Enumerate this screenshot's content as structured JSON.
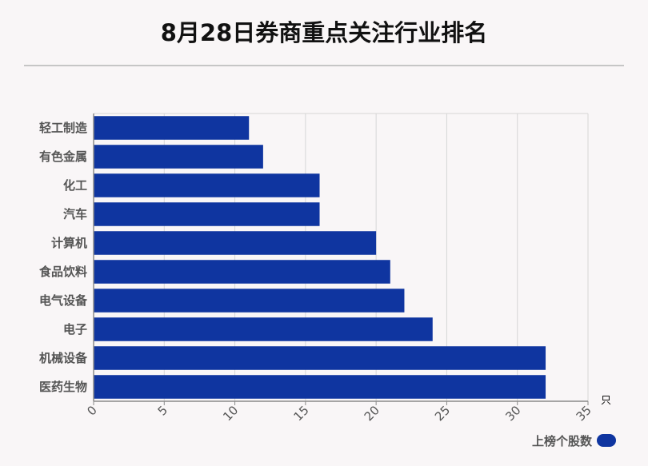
{
  "title": "8月28日券商重点关注行业排名",
  "colors": {
    "bar": "#0f35a0",
    "grid": "#d6d6d6",
    "axis": "#8a8a8a",
    "label": "#555555"
  },
  "chart_data": {
    "type": "bar",
    "orientation": "horizontal",
    "title": "8月28日券商重点关注行业排名",
    "categories": [
      "轻工制造",
      "有色金属",
      "化工",
      "汽车",
      "计算机",
      "食品饮料",
      "电气设备",
      "电子",
      "机械设备",
      "医药生物"
    ],
    "series": [
      {
        "name": "上榜个股数",
        "values": [
          11,
          12,
          16,
          16,
          20,
          21,
          22,
          24,
          32,
          32
        ]
      }
    ],
    "xticks": [
      "0",
      "5",
      "10",
      "15",
      "20",
      "25",
      "30",
      "35"
    ],
    "xlim": [
      0,
      35
    ],
    "unit": "只",
    "grid": true,
    "legend": "bottom-right"
  }
}
